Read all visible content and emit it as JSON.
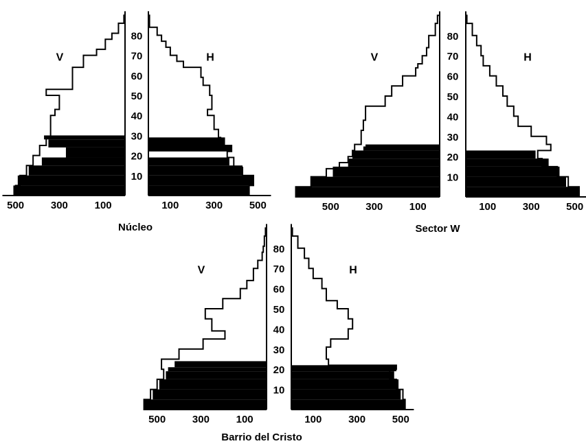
{
  "figure": {
    "panels": [
      "Núcleo",
      "Sector W",
      "Barrio del Cristo"
    ],
    "side_labels": {
      "male": "V",
      "female": "H"
    }
  },
  "chart_data": [
    {
      "type": "population-pyramid",
      "title": "Núcleo",
      "left_label": "V",
      "right_label": "H",
      "age_ticks": [
        10,
        20,
        30,
        40,
        50,
        60,
        70,
        80
      ],
      "x_ticks_left": [
        500,
        300,
        100
      ],
      "x_ticks_right": [
        100,
        300,
        500
      ],
      "x_range": [
        0,
        550
      ],
      "age_range": [
        0,
        88
      ],
      "series": [
        {
          "side": "left",
          "total": [
            500,
            490,
            460,
            440,
            300,
            200,
            60,
            350,
            390,
            380,
            370,
            360,
            310,
            240,
            220,
            190,
            140,
            120,
            90,
            60,
            50,
            30
          ],
          "filled": [
            500,
            490,
            460,
            440,
            300,
            200,
            60,
            350,
            390,
            380,
            0,
            0,
            0,
            0,
            0,
            0,
            0,
            0,
            0,
            0,
            0,
            0
          ],
          "age_bands": [
            [
              0,
              5
            ],
            [
              5,
              10
            ],
            [
              10,
              14
            ],
            [
              14,
              18
            ],
            [
              18,
              20
            ],
            [
              20,
              22
            ],
            [
              22,
              24
            ],
            [
              24,
              26
            ],
            [
              26,
              28
            ],
            [
              28,
              30
            ],
            [
              30,
              35
            ],
            [
              35,
              40
            ],
            [
              40,
              45
            ],
            [
              45,
              50
            ],
            [
              50,
              55
            ],
            [
              55,
              60
            ],
            [
              60,
              65
            ],
            [
              65,
              70
            ],
            [
              70,
              75
            ],
            [
              75,
              80
            ],
            [
              80,
              85
            ],
            [
              85,
              88
            ]
          ]
        }
      ]
    }
  ]
}
